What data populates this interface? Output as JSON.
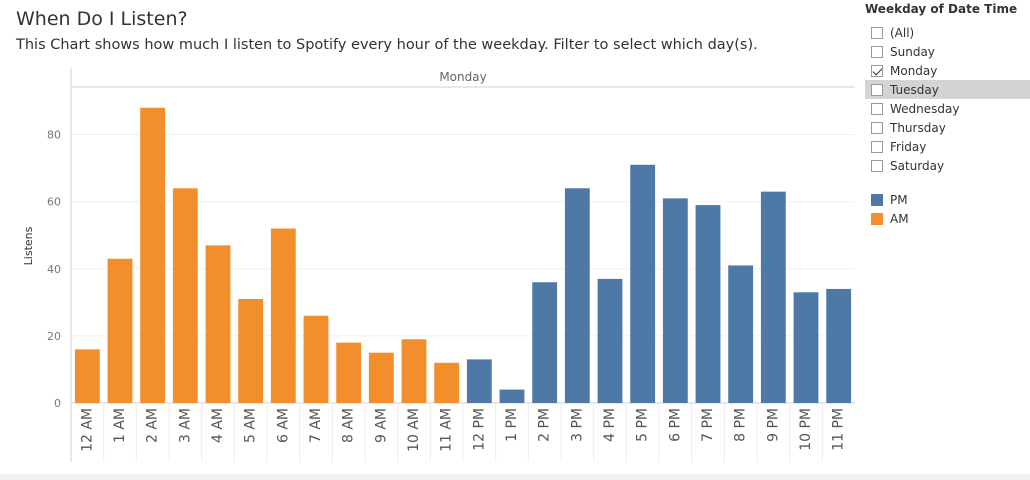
{
  "title": "When Do I Listen?",
  "subtitle": "This Chart shows how much I listen to Spotify every hour of the weekday. Filter to select which day(s).",
  "filter": {
    "title": "Weekday of Date Time",
    "options": [
      {
        "label": "(All)",
        "checked": false
      },
      {
        "label": "Sunday",
        "checked": false
      },
      {
        "label": "Monday",
        "checked": true
      },
      {
        "label": "Tuesday",
        "checked": false,
        "highlight": true
      },
      {
        "label": "Wednesday",
        "checked": false
      },
      {
        "label": "Thursday",
        "checked": false
      },
      {
        "label": "Friday",
        "checked": false
      },
      {
        "label": "Saturday",
        "checked": false
      }
    ]
  },
  "legend": [
    {
      "label": "PM",
      "color": "#4e79a7"
    },
    {
      "label": "AM",
      "color": "#f28e2b"
    }
  ],
  "chart_data": {
    "type": "bar",
    "panel_label": "Monday",
    "ylabel": "Listens",
    "ylim": [
      0,
      93
    ],
    "yticks": [
      0,
      20,
      40,
      60,
      80
    ],
    "categories": [
      "12 AM",
      "1 AM",
      "2 AM",
      "3 AM",
      "4 AM",
      "5 AM",
      "6 AM",
      "7 AM",
      "8 AM",
      "9 AM",
      "10 AM",
      "11 AM",
      "12 PM",
      "1 PM",
      "2 PM",
      "3 PM",
      "4 PM",
      "5 PM",
      "6 PM",
      "7 PM",
      "8 PM",
      "9 PM",
      "10 PM",
      "11 PM"
    ],
    "values": [
      16,
      43,
      88,
      64,
      47,
      31,
      52,
      26,
      18,
      15,
      19,
      12,
      13,
      4,
      36,
      64,
      37,
      71,
      61,
      59,
      41,
      63,
      33,
      34
    ],
    "colors": {
      "AM": "#f28e2b",
      "PM": "#4e79a7"
    }
  }
}
